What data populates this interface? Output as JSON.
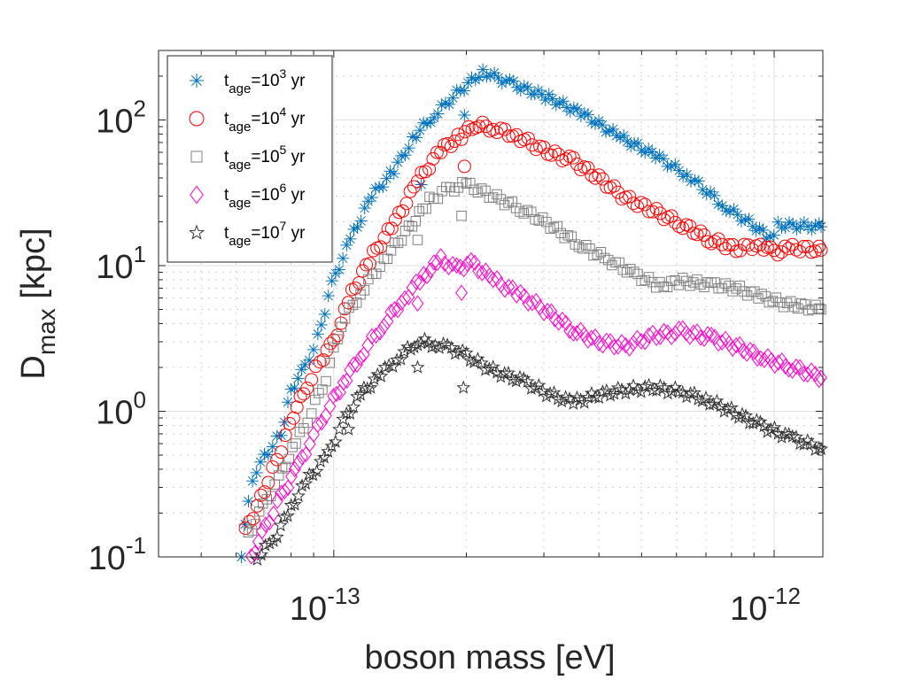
{
  "chart_data": {
    "type": "scatter",
    "title": "",
    "xlabel": "boson mass [eV]",
    "ylabel_main": "D",
    "ylabel_sub": "max",
    "ylabel_unit": " [kpc]",
    "xscale": "log",
    "yscale": "log",
    "xlim": [
      4e-14,
      1.29e-12
    ],
    "ylim": [
      0.1,
      300
    ],
    "grid": true,
    "minor_grid": true,
    "legend_position": "top-left",
    "x_ticks": [
      {
        "value": 1e-13,
        "base": "10",
        "exp": "-13"
      },
      {
        "value": 1e-12,
        "base": "10",
        "exp": "-12"
      }
    ],
    "y_ticks": [
      {
        "value": 0.1,
        "base": "10",
        "exp": "-1"
      },
      {
        "value": 1,
        "base": "10",
        "exp": "0"
      },
      {
        "value": 10,
        "base": "10",
        "exp": "1"
      },
      {
        "value": 100,
        "base": "10",
        "exp": "2"
      }
    ],
    "series": [
      {
        "name": "t_age=10^3 yr",
        "legend_sub": "age",
        "legend_exp": "3",
        "marker": "asterisk",
        "color": "#0072BD",
        "points": [
          [
            6.17e-14,
            0.1
          ],
          [
            6.4e-14,
            0.25
          ],
          [
            6.68e-14,
            0.4
          ],
          [
            7.1e-14,
            0.53
          ],
          [
            7.6e-14,
            0.7
          ],
          [
            8e-14,
            1.4
          ],
          [
            8.6e-14,
            2.0
          ],
          [
            9.2e-14,
            3.2
          ],
          [
            9.9e-14,
            7.5
          ],
          [
            1.09e-13,
            15
          ],
          [
            1.22e-13,
            30
          ],
          [
            1.37e-13,
            45
          ],
          [
            1.54e-13,
            80
          ],
          [
            1.69e-13,
            108
          ],
          [
            1.94e-13,
            160
          ],
          [
            2.18e-13,
            215
          ],
          [
            2.56e-13,
            175
          ],
          [
            3.08e-13,
            142
          ],
          [
            3.71e-13,
            108
          ],
          [
            4.47e-13,
            76
          ],
          [
            5.38e-13,
            57
          ],
          [
            6.47e-13,
            40
          ],
          [
            7.78e-13,
            25
          ],
          [
            8.94e-13,
            19
          ],
          [
            9.78e-13,
            15.5
          ],
          [
            1.02e-12,
            19
          ],
          [
            1.29e-12,
            18.5
          ]
        ],
        "outliers": [
          [
            1.98e-13,
            108
          ],
          [
            1.58e-13,
            36
          ]
        ]
      },
      {
        "name": "t_age=10^4 yr",
        "legend_sub": "age",
        "legend_exp": "4",
        "marker": "circle",
        "color": "#FF0000",
        "points": [
          [
            6.3e-14,
            0.15
          ],
          [
            6.7e-14,
            0.22
          ],
          [
            7.1e-14,
            0.33
          ],
          [
            7.6e-14,
            0.55
          ],
          [
            8.1e-14,
            0.95
          ],
          [
            8.7e-14,
            1.5
          ],
          [
            9.3e-14,
            2.2
          ],
          [
            1e-13,
            3.0
          ],
          [
            1.1e-13,
            6.5
          ],
          [
            1.23e-13,
            12
          ],
          [
            1.38e-13,
            20
          ],
          [
            1.55e-13,
            38
          ],
          [
            1.75e-13,
            62
          ],
          [
            1.95e-13,
            78
          ],
          [
            2.1e-13,
            93
          ],
          [
            2.3e-13,
            88
          ],
          [
            2.6e-13,
            78
          ],
          [
            3e-13,
            62
          ],
          [
            3.5e-13,
            52
          ],
          [
            4e-13,
            40
          ],
          [
            4.6e-13,
            29
          ],
          [
            5.3e-13,
            24
          ],
          [
            6.2e-13,
            19
          ],
          [
            7.2e-13,
            15
          ],
          [
            8.2e-13,
            13
          ],
          [
            9.3e-13,
            14
          ],
          [
            1e-12,
            12.3
          ],
          [
            1.1e-12,
            13.2
          ],
          [
            1.29e-12,
            12.8
          ]
        ],
        "outliers": [
          [
            1.98e-13,
            48
          ]
        ]
      },
      {
        "name": "t_age=10^5 yr",
        "legend_sub": "age",
        "legend_exp": "5",
        "marker": "square",
        "color": "#808080",
        "points": [
          [
            6.4e-14,
            0.14
          ],
          [
            6.9e-14,
            0.22
          ],
          [
            7.5e-14,
            0.35
          ],
          [
            8.2e-14,
            0.6
          ],
          [
            8.9e-14,
            1.0
          ],
          [
            9.6e-14,
            1.7
          ],
          [
            1.04e-13,
            4.0
          ],
          [
            1.15e-13,
            6.5
          ],
          [
            1.3e-13,
            11
          ],
          [
            1.48e-13,
            18
          ],
          [
            1.65e-13,
            28
          ],
          [
            1.8e-13,
            33
          ],
          [
            2e-13,
            36
          ],
          [
            2.3e-13,
            30
          ],
          [
            2.7e-13,
            24
          ],
          [
            3.1e-13,
            19
          ],
          [
            3.6e-13,
            14
          ],
          [
            4.2e-13,
            11
          ],
          [
            4.9e-13,
            8.5
          ],
          [
            5.5e-13,
            7.3
          ],
          [
            6.2e-13,
            7.8
          ],
          [
            7.2e-13,
            7.4
          ],
          [
            8.2e-13,
            7.0
          ],
          [
            9.2e-13,
            6.2
          ],
          [
            1.05e-12,
            5.5
          ],
          [
            1.29e-12,
            5.0
          ]
        ],
        "outliers": [
          [
            1.95e-13,
            22
          ],
          [
            1.55e-13,
            15
          ]
        ]
      },
      {
        "name": "t_age=10^6 yr",
        "legend_sub": "age",
        "legend_exp": "6",
        "marker": "diamond",
        "color": "#FF00CC",
        "points": [
          [
            6.5e-14,
            0.1
          ],
          [
            7e-14,
            0.16
          ],
          [
            7.6e-14,
            0.26
          ],
          [
            8.3e-14,
            0.42
          ],
          [
            9e-14,
            0.68
          ],
          [
            9.8e-14,
            1.1
          ],
          [
            1.07e-13,
            1.7
          ],
          [
            1.17e-13,
            2.6
          ],
          [
            1.3e-13,
            4.0
          ],
          [
            1.45e-13,
            6.0
          ],
          [
            1.6e-13,
            8.5
          ],
          [
            1.75e-13,
            11
          ],
          [
            1.9e-13,
            9.5
          ],
          [
            2.05e-13,
            10.5
          ],
          [
            2.3e-13,
            8.0
          ],
          [
            2.6e-13,
            6.5
          ],
          [
            3e-13,
            5.0
          ],
          [
            3.5e-13,
            3.6
          ],
          [
            4e-13,
            3.0
          ],
          [
            4.6e-13,
            2.8
          ],
          [
            5.3e-13,
            3.3
          ],
          [
            6.2e-13,
            3.5
          ],
          [
            7.2e-13,
            3.2
          ],
          [
            8.2e-13,
            2.8
          ],
          [
            9.5e-13,
            2.3
          ],
          [
            1.1e-12,
            2.0
          ],
          [
            1.29e-12,
            1.7
          ]
        ],
        "outliers": [
          [
            1.95e-13,
            6.5
          ],
          [
            1.55e-13,
            5.5
          ]
        ]
      },
      {
        "name": "t_age=10^7 yr",
        "legend_sub": "age",
        "legend_exp": "7",
        "marker": "pentagram",
        "color": "#333333",
        "points": [
          [
            6.7e-14,
            0.1
          ],
          [
            7.3e-14,
            0.13
          ],
          [
            8e-14,
            0.22
          ],
          [
            8.8e-14,
            0.35
          ],
          [
            9.7e-14,
            0.5
          ],
          [
            1.05e-13,
            0.85
          ],
          [
            1.15e-13,
            1.3
          ],
          [
            1.28e-13,
            1.8
          ],
          [
            1.42e-13,
            2.4
          ],
          [
            1.55e-13,
            3.0
          ],
          [
            1.7e-13,
            2.9
          ],
          [
            1.85e-13,
            2.7
          ],
          [
            2e-13,
            2.4
          ],
          [
            2.3e-13,
            1.9
          ],
          [
            2.7e-13,
            1.6
          ],
          [
            3.1e-13,
            1.3
          ],
          [
            3.5e-13,
            1.15
          ],
          [
            4e-13,
            1.3
          ],
          [
            4.6e-13,
            1.4
          ],
          [
            5.3e-13,
            1.45
          ],
          [
            6.2e-13,
            1.35
          ],
          [
            7e-13,
            1.2
          ],
          [
            8e-13,
            1.0
          ],
          [
            9.3e-13,
            0.8
          ],
          [
            1.1e-12,
            0.65
          ],
          [
            1.29e-12,
            0.55
          ]
        ],
        "outliers": [
          [
            1.97e-13,
            1.45
          ],
          [
            1.55e-13,
            2.0
          ],
          [
            1.08e-13,
            0.75
          ]
        ]
      }
    ]
  }
}
